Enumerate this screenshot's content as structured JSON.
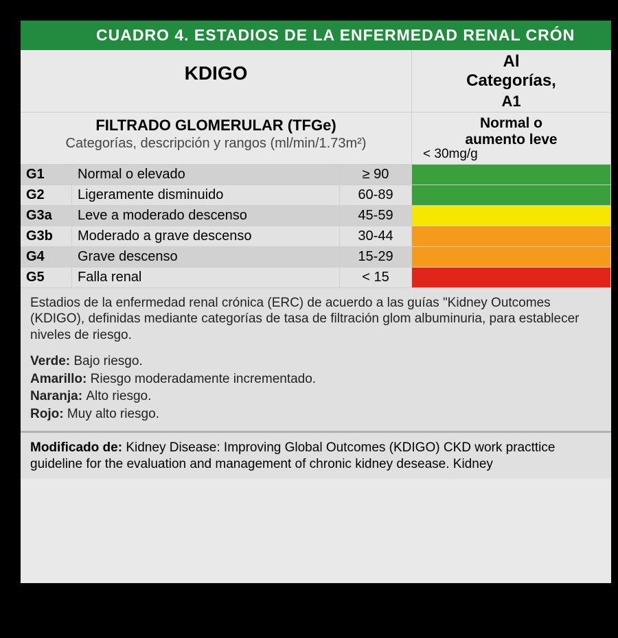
{
  "banner_title": "Cuadro 4. Estadios de la enfermedad renal crón",
  "kdigo_label": "KDIGO",
  "albuminuria_header_line1": "Al",
  "albuminuria_header_line2": "Categorías,",
  "a1_label": "A1",
  "tfge_title": "FILTRADO GLOMERULAR (TFGe)",
  "tfge_subtitle": "Categorías, descripción y rangos (ml/min/1.73m²)",
  "normal_leve_line1": "Normal o",
  "normal_leve_line2": "aumento leve",
  "a1_range": "< 30mg/g",
  "colors": {
    "green": "#3aa03c",
    "yellow": "#f6e600",
    "orange": "#f59a1a",
    "red": "#e0261a",
    "banner": "#228b3f",
    "row_dark": "#d1d1d1",
    "row_light": "#e2e2e2",
    "page_bg": "#e9e9e9"
  },
  "rows": [
    {
      "code": "G1",
      "desc": "Normal o elevado",
      "val": "≥ 90",
      "heat": "#3aa03c",
      "shade": "dark"
    },
    {
      "code": "G2",
      "desc": "Ligeramente disminuido",
      "val": "60-89",
      "heat": "#3aa03c",
      "shade": "light"
    },
    {
      "code": "G3a",
      "desc": "Leve a moderado descenso",
      "val": "45-59",
      "heat": "#f6e600",
      "shade": "dark"
    },
    {
      "code": "G3b",
      "desc": "Moderado a grave descenso",
      "val": "30-44",
      "heat": "#f59a1a",
      "shade": "light"
    },
    {
      "code": "G4",
      "desc": "Grave descenso",
      "val": "15-29",
      "heat": "#f59a1a",
      "shade": "dark"
    },
    {
      "code": "G5",
      "desc": "Falla renal",
      "val": "< 15",
      "heat": "#e0261a",
      "shade": "light"
    }
  ],
  "footer_paragraph": "Estadios de la enfermedad renal crónica (ERC) de acuerdo a las guías \"Kidney Outcomes (KDIGO), definidas mediante categorías de tasa de filtración glom albuminuria, para establecer niveles de riesgo.",
  "legend": [
    {
      "label": "Verde",
      "text": "Bajo riesgo."
    },
    {
      "label": "Amarillo",
      "text": "Riesgo moderadamente incrementado."
    },
    {
      "label": "Naranja",
      "text": "Alto riesgo."
    },
    {
      "label": "Rojo",
      "text": "Muy alto riesgo."
    }
  ],
  "modificado_label": "Modificado de:",
  "modificado_text": "Kidney Disease: Improving Global Outcomes (KDIGO) CKD work practtice guideline for the evaluation and management of chronic kidney desease. Kidney"
}
